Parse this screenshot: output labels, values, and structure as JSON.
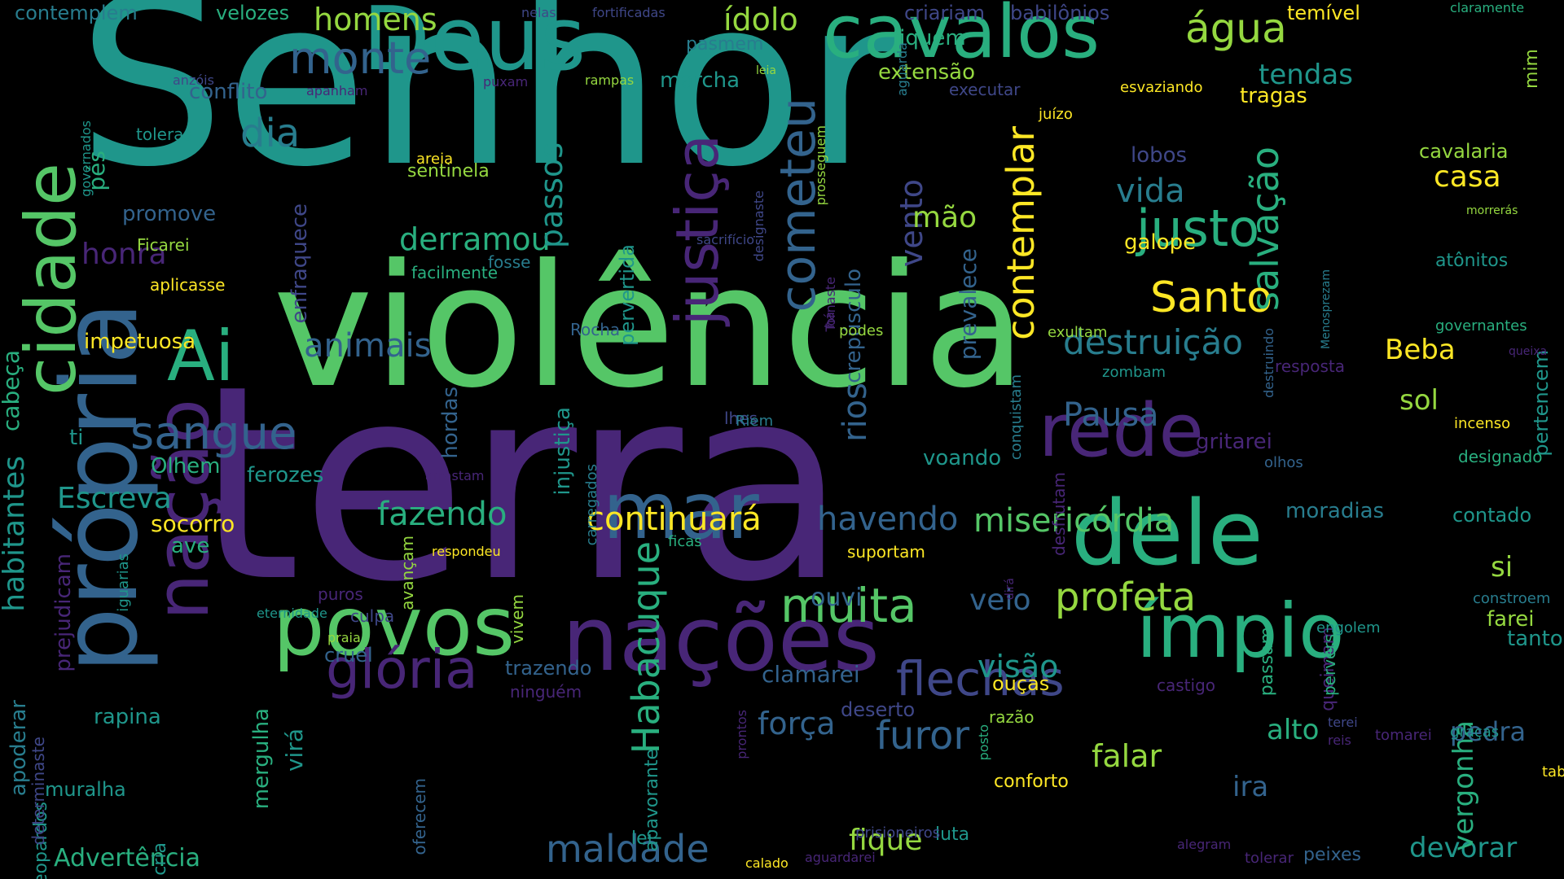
{
  "palette": {
    "background": "#000000",
    "d": "#440154",
    "p": "#482677",
    "i": "#3f4788",
    "b": "#33638d",
    "t": "#287d8e",
    "c": "#1f968b",
    "g": "#29af7f",
    "e": "#55c667",
    "l": "#95d840",
    "y": "#fde725"
  },
  "words": [
    [
      "Senhor",
      "c",
      0
    ],
    [
      "violência",
      "e",
      0
    ],
    [
      "terra",
      "p",
      0
    ],
    [
      "própria",
      "b",
      1
    ],
    [
      "nações",
      "p",
      0
    ],
    [
      "cidade",
      "e",
      1
    ],
    [
      "Deus",
      "c",
      0
    ],
    [
      "cavalos",
      "g",
      0
    ],
    [
      "povos",
      "e",
      0
    ],
    [
      "ímpio",
      "g",
      0
    ],
    [
      "dele",
      "g",
      0
    ],
    [
      "mar",
      "b",
      0
    ],
    [
      "rede",
      "p",
      0
    ],
    [
      "nação",
      "p",
      1
    ],
    [
      "Ai",
      "g",
      0
    ],
    [
      "justiça",
      "p",
      1
    ],
    [
      "cometeu",
      "b",
      1
    ],
    [
      "glória",
      "p",
      0
    ],
    [
      "flechas",
      "i",
      0
    ],
    [
      "sangue",
      "b",
      0
    ],
    [
      "justo",
      "g",
      0
    ],
    [
      "Santo",
      "y",
      0
    ],
    [
      "muita",
      "e",
      0
    ],
    [
      "Habacuque",
      "g",
      1
    ],
    [
      "monte",
      "b",
      0
    ],
    [
      "água",
      "l",
      0
    ],
    [
      "profeta",
      "l",
      0
    ],
    [
      "contemplar",
      "y",
      1
    ],
    [
      "salvação",
      "g",
      1
    ],
    [
      "maldade",
      "b",
      0
    ],
    [
      "dia",
      "t",
      0
    ],
    [
      "furor",
      "b",
      0
    ],
    [
      "continuará",
      "y",
      0
    ],
    [
      "misericórdia",
      "e",
      0
    ],
    [
      "destruição",
      "t",
      0
    ],
    [
      "animais",
      "b",
      0
    ],
    [
      "havendo",
      "b",
      0
    ],
    [
      "derramou",
      "g",
      0
    ],
    [
      "fazendo",
      "g",
      0
    ],
    [
      "vida",
      "t",
      0
    ],
    [
      "homens",
      "l",
      0
    ],
    [
      "ídolo",
      "l",
      0
    ],
    [
      "passos",
      "c",
      1
    ],
    [
      "Pausa",
      "b",
      0
    ],
    [
      "vento",
      "i",
      1
    ],
    [
      "rios",
      "b",
      1
    ],
    [
      "força",
      "b",
      0
    ],
    [
      "visão",
      "c",
      0
    ],
    [
      "falar",
      "l",
      0
    ],
    [
      "devorar",
      "c",
      0
    ],
    [
      "fique",
      "l",
      0
    ],
    [
      "mão",
      "l",
      0
    ],
    [
      "Escreva",
      "c",
      0
    ],
    [
      "honra",
      "p",
      0
    ],
    [
      "veio",
      "b",
      0
    ],
    [
      "habitantes",
      "c",
      1
    ],
    [
      "Advertência",
      "g",
      0
    ],
    [
      "tendas",
      "c",
      0
    ],
    [
      "casa",
      "y",
      0
    ],
    [
      "Beba",
      "y",
      0
    ],
    [
      "vergonha",
      "g",
      1
    ],
    [
      "pedra",
      "b",
      0
    ],
    [
      "alto",
      "g",
      0
    ],
    [
      "sol",
      "l",
      0
    ],
    [
      "ira",
      "b",
      0
    ],
    [
      "si",
      "l",
      0
    ],
    [
      "ouvi",
      "b",
      0
    ],
    [
      "prevalece",
      "b",
      1
    ],
    [
      "cabeça",
      "g",
      1
    ],
    [
      "pés",
      "g",
      1
    ],
    [
      "conflito",
      "b",
      0
    ],
    [
      "crepúsculo",
      "b",
      1
    ],
    [
      "injustiça",
      "c",
      1
    ],
    [
      "enfraquece",
      "i",
      1
    ],
    [
      "socorro",
      "y",
      0
    ],
    [
      "impetuosa",
      "y",
      0
    ],
    [
      "pervertida",
      "c",
      1
    ],
    [
      "galope",
      "y",
      0
    ],
    [
      "tragas",
      "y",
      0
    ],
    [
      "moradias",
      "t",
      0
    ],
    [
      "clamarei",
      "b",
      0
    ],
    [
      "apoderar",
      "t",
      1
    ],
    [
      "extensão",
      "l",
      0
    ],
    [
      "fiquem",
      "g",
      0
    ],
    [
      "marcha",
      "c",
      0
    ],
    [
      "virá",
      "c",
      1
    ],
    [
      "hordas",
      "b",
      1
    ],
    [
      "sentinela",
      "l",
      0
    ],
    [
      "lobos",
      "i",
      0
    ],
    [
      "gritarei",
      "p",
      0
    ],
    [
      "ti",
      "c",
      0
    ],
    [
      "ferozes",
      "c",
      0
    ],
    [
      "Olhem",
      "g",
      0
    ],
    [
      "voando",
      "c",
      0
    ],
    [
      "promove",
      "b",
      0
    ],
    [
      "ave",
      "g",
      0
    ],
    [
      "prejudicam",
      "p",
      1
    ],
    [
      "muralha",
      "c",
      0
    ],
    [
      "mergulha",
      "g",
      1
    ],
    [
      "cruel",
      "b",
      0
    ],
    [
      "trazendo",
      "b",
      0
    ],
    [
      "rapina",
      "c",
      0
    ],
    [
      "ouças",
      "y",
      0
    ],
    [
      "deserto",
      "i",
      0
    ],
    [
      "pertencem",
      "c",
      1
    ],
    [
      "farei",
      "l",
      0
    ],
    [
      "tantos",
      "c",
      0
    ],
    [
      "contado",
      "c",
      0
    ],
    [
      "cavalaria",
      "l",
      0
    ],
    [
      "atônitos",
      "c",
      0
    ],
    [
      "governantes",
      "g",
      0
    ],
    [
      "velozes",
      "g",
      0
    ],
    [
      "contemplem",
      "t",
      0
    ],
    [
      "temível",
      "y",
      0
    ],
    [
      "claramente",
      "g",
      0
    ],
    [
      "criariam",
      "i",
      0
    ],
    [
      "babilônios",
      "i",
      0
    ],
    [
      "pasmem",
      "t",
      0
    ],
    [
      "mim",
      "l",
      1
    ],
    [
      "leopardos",
      "c",
      1
    ],
    [
      "cria",
      "c",
      1
    ],
    [
      "apavorante",
      "c",
      1
    ],
    [
      "lei",
      "c",
      0
    ],
    [
      "luta",
      "c",
      0
    ],
    [
      "conforto",
      "y",
      0
    ],
    [
      "peixes",
      "b",
      0
    ],
    [
      "tabuinhas",
      "y",
      0
    ],
    [
      "passam",
      "g",
      1
    ],
    [
      "queimam",
      "p",
      1
    ],
    [
      "pervers",
      "g",
      1
    ],
    [
      "engolem",
      "c",
      0
    ],
    [
      "constroem",
      "t",
      0
    ],
    [
      "tomarei",
      "p",
      0
    ],
    [
      "graças",
      "c",
      0
    ],
    [
      "castigo",
      "p",
      0
    ],
    [
      "razão",
      "l",
      0
    ],
    [
      "incenso",
      "y",
      0
    ],
    [
      "designado",
      "g",
      0
    ],
    [
      "olhos",
      "b",
      0
    ],
    [
      "resposta",
      "p",
      0
    ],
    [
      "zombam",
      "c",
      0
    ],
    [
      "exultam",
      "l",
      0
    ],
    [
      "conquistam",
      "t",
      1
    ],
    [
      "desfrutam",
      "p",
      1
    ],
    [
      "avançam",
      "l",
      1
    ],
    [
      "suportam",
      "y",
      0
    ],
    [
      "ficas",
      "g",
      0
    ],
    [
      "vivem",
      "l",
      1
    ],
    [
      "culpa",
      "i",
      0
    ],
    [
      "praia",
      "l",
      0
    ],
    [
      "respondeu",
      "y",
      0
    ],
    [
      "iguarias",
      "c",
      1
    ],
    [
      "puros",
      "p",
      0
    ],
    [
      "eternidade",
      "c",
      0
    ],
    [
      "prontos",
      "p",
      1
    ],
    [
      "ninguém",
      "p",
      0
    ],
    [
      "alegram",
      "p",
      0
    ],
    [
      "posto",
      "g",
      1
    ],
    [
      "tolerar",
      "p",
      0
    ],
    [
      "determinaste",
      "i",
      1
    ],
    [
      "oferecem",
      "b",
      1
    ],
    [
      "prisioneiros",
      "i",
      0
    ],
    [
      "calado",
      "y",
      0
    ],
    [
      "aguardarei",
      "p",
      0
    ],
    [
      "reis",
      "p",
      0
    ],
    [
      "terei",
      "i",
      0
    ],
    [
      "facilmente",
      "g",
      0
    ],
    [
      "fosse",
      "t",
      0
    ],
    [
      "aplicasse",
      "y",
      0
    ],
    [
      "Ficarei",
      "l",
      0
    ],
    [
      "sacrifício",
      "i",
      0
    ],
    [
      "designaste",
      "i",
      1
    ],
    [
      "prosseguem",
      "l",
      1
    ],
    [
      "Tornaste",
      "p",
      1
    ],
    [
      "destruindo",
      "b",
      1
    ],
    [
      "Rocha",
      "b",
      0
    ],
    [
      "Menosprezam",
      "t",
      1
    ],
    [
      "morrerás",
      "l",
      0
    ],
    [
      "queixa",
      "p",
      0
    ],
    [
      "podes",
      "l",
      0
    ],
    [
      "há",
      "p",
      1
    ],
    [
      "lhes",
      "i",
      0
    ],
    [
      "Riem",
      "t",
      0
    ],
    [
      "areia",
      "y",
      0
    ],
    [
      "toleras",
      "c",
      0
    ],
    [
      "anzóis",
      "i",
      0
    ],
    [
      "governados",
      "c",
      1
    ],
    [
      "apanham",
      "p",
      0
    ],
    [
      "puxam",
      "p",
      0
    ],
    [
      "rampas",
      "l",
      0
    ],
    [
      "leia",
      "l",
      0
    ],
    [
      "aguarda",
      "t",
      1
    ],
    [
      "executar",
      "i",
      0
    ],
    [
      "juízo",
      "y",
      0
    ],
    [
      "esvaziando",
      "y",
      0
    ],
    [
      "nelas",
      "i",
      0
    ],
    [
      "fortificadas",
      "i",
      0
    ],
    [
      "carregados",
      "t",
      1
    ],
    [
      "arrastam",
      "p",
      0
    ],
    [
      "dirá",
      "p",
      1
    ]
  ]
}
